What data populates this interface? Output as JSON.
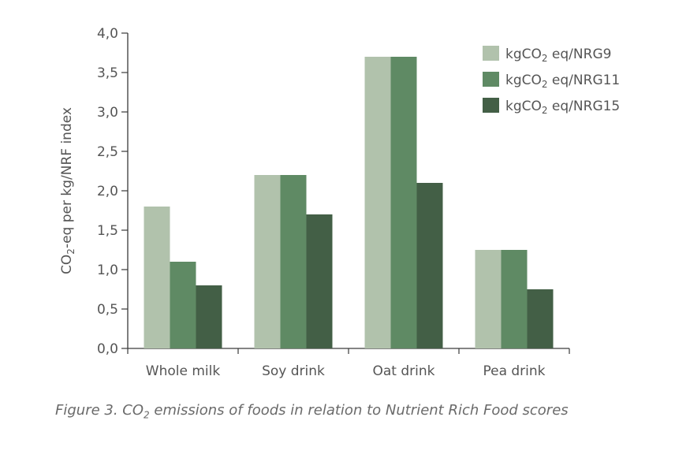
{
  "chart_data": {
    "type": "bar",
    "categories": [
      "Whole milk",
      "Soy drink",
      "Oat drink",
      "Pea drink"
    ],
    "series": [
      {
        "name": "kgCO2 eq/NRG9",
        "color": "#b1c2ac",
        "values": [
          1.8,
          2.2,
          3.7,
          1.25
        ]
      },
      {
        "name": "kgCO2 eq/NRG11",
        "color": "#5f8a64",
        "values": [
          1.1,
          2.2,
          3.7,
          1.25
        ]
      },
      {
        "name": "kgCO2 eq/NRG15",
        "color": "#435f46",
        "values": [
          0.8,
          1.7,
          2.1,
          0.75
        ]
      }
    ],
    "ylabel": "CO2-eq per kg/NRF index",
    "ylim": [
      0,
      4.0
    ],
    "yticks": [
      "0,0",
      "0,5",
      "1,0",
      "1,5",
      "2,0",
      "2,5",
      "3,0",
      "3,5",
      "4,0"
    ],
    "legend_position": "top-right",
    "grid": false
  },
  "caption": {
    "prefix": "Figure 3. CO",
    "sub": "2",
    "suffix": " emissions of foods in relation to Nutrient Rich Food scores"
  }
}
